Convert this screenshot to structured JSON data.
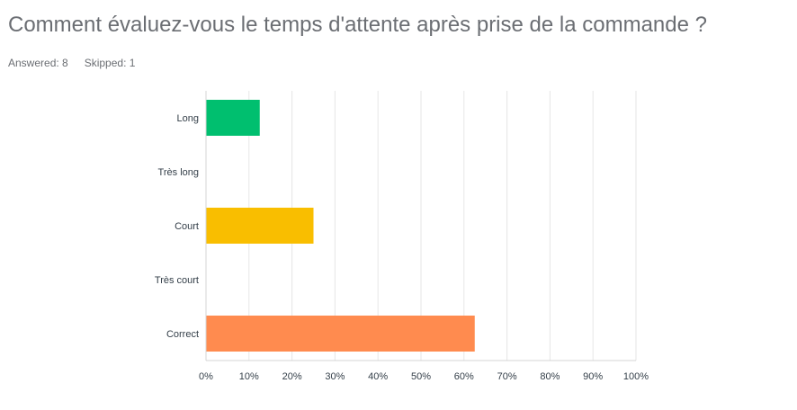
{
  "question": {
    "title": "Comment évaluez-vous le temps d'attente après prise de la commande ?",
    "answered_label": "Answered: 8",
    "skipped_label": "Skipped: 1"
  },
  "chart_data": {
    "type": "bar",
    "orientation": "horizontal",
    "categories": [
      "Long",
      "Très long",
      "Court",
      "Très court",
      "Correct"
    ],
    "values": [
      12.5,
      0,
      25,
      0,
      62.5
    ],
    "colors": [
      "#00bf6f",
      "#507cb6",
      "#f9be00",
      "#6bc8cd",
      "#ff8b4f"
    ],
    "xlim": [
      0,
      100
    ],
    "xticks": [
      "0%",
      "10%",
      "20%",
      "30%",
      "40%",
      "50%",
      "60%",
      "70%",
      "80%",
      "90%",
      "100%"
    ],
    "grid": true,
    "legend": "none"
  }
}
